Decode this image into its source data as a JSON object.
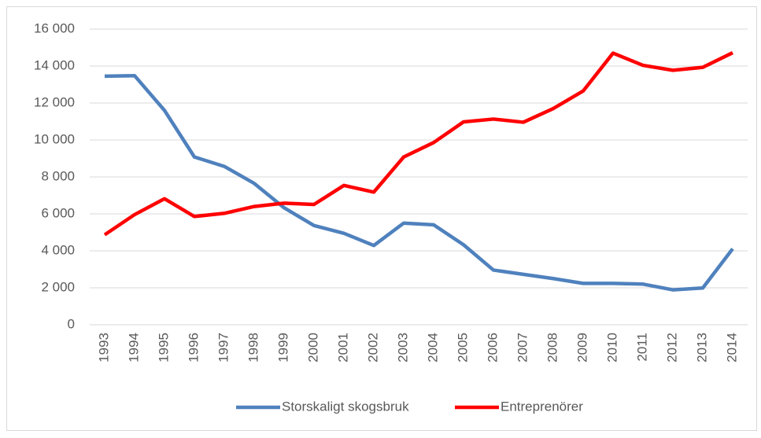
{
  "chart_data": {
    "type": "line",
    "categories": [
      "1993",
      "1994",
      "1995",
      "1996",
      "1997",
      "1998",
      "1999",
      "2000",
      "2001",
      "2002",
      "2003",
      "2004",
      "2005",
      "2006",
      "2007",
      "2008",
      "2009",
      "2010",
      "2011",
      "2012",
      "2013",
      "2014"
    ],
    "series": [
      {
        "name": "Storskaligt skogsbruk",
        "color": "#4f81bd",
        "values": [
          13450,
          13480,
          11600,
          9080,
          8570,
          7650,
          6330,
          5370,
          4950,
          4290,
          5500,
          5410,
          4330,
          2960,
          2730,
          2500,
          2240,
          2240,
          2200,
          1890,
          1990,
          4110
        ]
      },
      {
        "name": "Entreprenörer",
        "color": "#ff0000",
        "values": [
          4870,
          5960,
          6820,
          5860,
          6030,
          6400,
          6580,
          6510,
          7540,
          7180,
          9080,
          9860,
          10980,
          11130,
          10960,
          11700,
          12650,
          14700,
          14040,
          13770,
          13930,
          14720
        ]
      }
    ],
    "ylim": [
      0,
      16000
    ],
    "yticks": [
      0,
      {
        "value": 2000,
        "label": "2 000"
      },
      {
        "value": 4000,
        "label": "4 000"
      },
      {
        "value": 6000,
        "label": "6 000"
      },
      {
        "value": 8000,
        "label": "8 000"
      },
      {
        "value": 10000,
        "label": "10 000"
      },
      {
        "value": 12000,
        "label": "12 000"
      },
      {
        "value": 14000,
        "label": "14 000"
      },
      {
        "value": 16000,
        "label": "16 000"
      }
    ],
    "grid": true,
    "legend": "bottom"
  }
}
